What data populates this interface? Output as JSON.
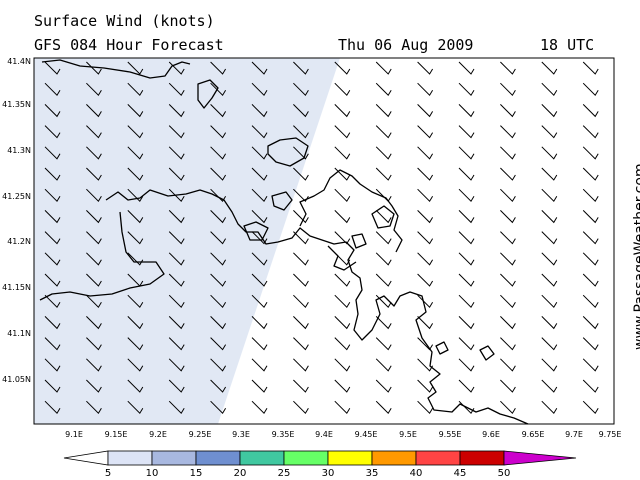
{
  "header": {
    "title": "Surface Wind (knots)",
    "forecast": "GFS 084 Hour Forecast",
    "date": "Thu 06 Aug 2009",
    "time": "18 UTC"
  },
  "brand": "www.PassageWeather.com",
  "map": {
    "lat_labels": [
      "41.4N",
      "41.35N",
      "41.3N",
      "41.25N",
      "41.2N",
      "41.15N",
      "41.1N",
      "41.05N"
    ],
    "lon_labels": [
      "9.1E",
      "9.15E",
      "9.2E",
      "9.25E",
      "9.3E",
      "9.35E",
      "9.4E",
      "9.45E",
      "9.5E",
      "9.55E",
      "9.6E",
      "9.65E",
      "9.7E",
      "9.75E"
    ],
    "shade_color": "#e1e8f4"
  },
  "legend": {
    "labels": [
      "5",
      "10",
      "15",
      "20",
      "25",
      "30",
      "35",
      "40",
      "45",
      "50"
    ],
    "colors": [
      "#ffffff",
      "#dde4f6",
      "#a8b8e0",
      "#6f8fd0",
      "#40c8a0",
      "#66ff66",
      "#ffff00",
      "#ff9900",
      "#ff4444",
      "#cc0000",
      "#cc00cc"
    ]
  }
}
